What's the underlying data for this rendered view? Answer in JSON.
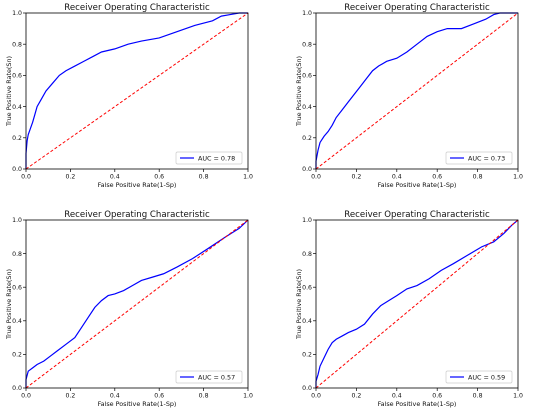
{
  "chart_data": [
    {
      "type": "line",
      "title": "Receiver Operating Characteristic",
      "xlabel": "False Positive Rate(1-Sp)",
      "ylabel": "True Positive Rate(Sn)",
      "xlim": [
        0,
        1
      ],
      "ylim": [
        0,
        1
      ],
      "xticks": [
        "0.0",
        "0.2",
        "0.4",
        "0.6",
        "0.8",
        "1.0"
      ],
      "yticks": [
        "0.0",
        "0.2",
        "0.4",
        "0.6",
        "0.8",
        "1.0"
      ],
      "grid": false,
      "legend_position": "bottom-right",
      "series": [
        {
          "name": "AUC = 0.78",
          "color": "#0000ff",
          "style": "solid",
          "x": [
            0,
            0,
            0.005,
            0.01,
            0.02,
            0.03,
            0.04,
            0.05,
            0.07,
            0.09,
            0.12,
            0.15,
            0.18,
            0.22,
            0.26,
            0.3,
            0.34,
            0.4,
            0.46,
            0.52,
            0.6,
            0.68,
            0.76,
            0.84,
            0.88,
            0.92,
            0.96,
            1.0
          ],
          "y": [
            0,
            0.1,
            0.18,
            0.22,
            0.26,
            0.3,
            0.35,
            0.4,
            0.45,
            0.5,
            0.55,
            0.6,
            0.63,
            0.66,
            0.69,
            0.72,
            0.75,
            0.77,
            0.8,
            0.82,
            0.84,
            0.88,
            0.92,
            0.95,
            0.98,
            0.99,
            1.0,
            1.0
          ]
        },
        {
          "name": "",
          "color": "#ff0000",
          "style": "dashed",
          "x": [
            0,
            1
          ],
          "y": [
            0,
            1
          ]
        }
      ]
    },
    {
      "type": "line",
      "title": "Receiver Operating Characteristic",
      "xlabel": "False Positive Rate(1-Sp)",
      "ylabel": "True Positive Rate(Sn)",
      "xlim": [
        0,
        1
      ],
      "ylim": [
        0,
        1
      ],
      "xticks": [
        "0.0",
        "0.2",
        "0.4",
        "0.6",
        "0.8",
        "1.0"
      ],
      "yticks": [
        "0.0",
        "0.2",
        "0.4",
        "0.6",
        "0.8",
        "1.0"
      ],
      "grid": false,
      "legend_position": "bottom-right",
      "series": [
        {
          "name": "AUC = 0.73",
          "color": "#0000ff",
          "style": "solid",
          "x": [
            0,
            0,
            0.01,
            0.02,
            0.04,
            0.06,
            0.08,
            0.1,
            0.13,
            0.16,
            0.19,
            0.22,
            0.25,
            0.28,
            0.31,
            0.35,
            0.4,
            0.45,
            0.5,
            0.55,
            0.6,
            0.65,
            0.72,
            0.78,
            0.84,
            0.88,
            0.91,
            1.0
          ],
          "y": [
            0,
            0.05,
            0.12,
            0.17,
            0.21,
            0.24,
            0.28,
            0.33,
            0.38,
            0.43,
            0.48,
            0.53,
            0.58,
            0.63,
            0.66,
            0.69,
            0.71,
            0.75,
            0.8,
            0.85,
            0.88,
            0.9,
            0.9,
            0.93,
            0.96,
            0.99,
            1.0,
            1.0
          ]
        },
        {
          "name": "",
          "color": "#ff0000",
          "style": "dashed",
          "x": [
            0,
            1
          ],
          "y": [
            0,
            1
          ]
        }
      ]
    },
    {
      "type": "line",
      "title": "Receiver Operating Characteristic",
      "xlabel": "False Positive Rate(1-Sp)",
      "ylabel": "True Positive Rate(Sn)",
      "xlim": [
        0,
        1
      ],
      "ylim": [
        0,
        1
      ],
      "xticks": [
        "0.0",
        "0.2",
        "0.4",
        "0.6",
        "0.8",
        "1.0"
      ],
      "yticks": [
        "0.0",
        "0.2",
        "0.4",
        "0.6",
        "0.8",
        "1.0"
      ],
      "grid": false,
      "legend_position": "bottom-right",
      "series": [
        {
          "name": "AUC = 0.57",
          "color": "#0000ff",
          "style": "solid",
          "x": [
            0,
            0,
            0.01,
            0.03,
            0.05,
            0.08,
            0.11,
            0.14,
            0.18,
            0.22,
            0.25,
            0.28,
            0.31,
            0.34,
            0.37,
            0.4,
            0.44,
            0.48,
            0.52,
            0.57,
            0.62,
            0.68,
            0.75,
            0.82,
            0.9,
            0.96,
            1.0
          ],
          "y": [
            0,
            0.05,
            0.1,
            0.12,
            0.14,
            0.16,
            0.19,
            0.22,
            0.26,
            0.3,
            0.36,
            0.42,
            0.48,
            0.52,
            0.55,
            0.56,
            0.58,
            0.61,
            0.64,
            0.66,
            0.68,
            0.72,
            0.77,
            0.83,
            0.9,
            0.95,
            1.0
          ]
        },
        {
          "name": "",
          "color": "#ff0000",
          "style": "dashed",
          "x": [
            0,
            1
          ],
          "y": [
            0,
            1
          ]
        }
      ]
    },
    {
      "type": "line",
      "title": "Receiver Operating Characteristic",
      "xlabel": "False Positive Rate(1-Sp)",
      "ylabel": "True Positive Rate(Sn)",
      "xlim": [
        0,
        1
      ],
      "ylim": [
        0,
        1
      ],
      "xticks": [
        "0.0",
        "0.2",
        "0.4",
        "0.6",
        "0.8",
        "1.0"
      ],
      "yticks": [
        "0.0",
        "0.2",
        "0.4",
        "0.6",
        "0.8",
        "1.0"
      ],
      "grid": false,
      "legend_position": "bottom-right",
      "series": [
        {
          "name": "AUC = 0.59",
          "color": "#0000ff",
          "style": "solid",
          "x": [
            0,
            0,
            0.01,
            0.02,
            0.04,
            0.06,
            0.08,
            0.1,
            0.13,
            0.16,
            0.2,
            0.24,
            0.28,
            0.32,
            0.36,
            0.4,
            0.45,
            0.5,
            0.56,
            0.62,
            0.68,
            0.75,
            0.82,
            0.88,
            0.93,
            0.97,
            1.0
          ],
          "y": [
            0,
            0.04,
            0.08,
            0.13,
            0.18,
            0.23,
            0.27,
            0.29,
            0.31,
            0.33,
            0.35,
            0.38,
            0.44,
            0.49,
            0.52,
            0.55,
            0.59,
            0.61,
            0.65,
            0.7,
            0.74,
            0.79,
            0.84,
            0.87,
            0.92,
            0.97,
            1.0
          ]
        },
        {
          "name": "",
          "color": "#ff0000",
          "style": "dashed",
          "x": [
            0,
            1
          ],
          "y": [
            0,
            1
          ]
        }
      ]
    }
  ]
}
